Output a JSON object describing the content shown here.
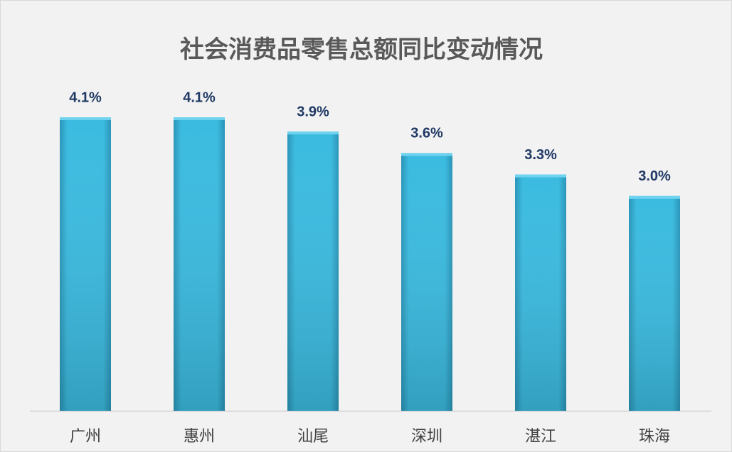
{
  "chart_data": {
    "type": "bar",
    "title": "社会消费品零售总额同比变动情况",
    "categories": [
      "广州",
      "惠州",
      "汕尾",
      "深圳",
      "湛江",
      "珠海"
    ],
    "values": [
      4.1,
      4.1,
      3.9,
      3.6,
      3.3,
      3.0
    ],
    "value_labels": [
      "4.1%",
      "4.1%",
      "3.9%",
      "3.6%",
      "3.3%",
      "3.0%"
    ],
    "color": "#39b6dc"
  }
}
